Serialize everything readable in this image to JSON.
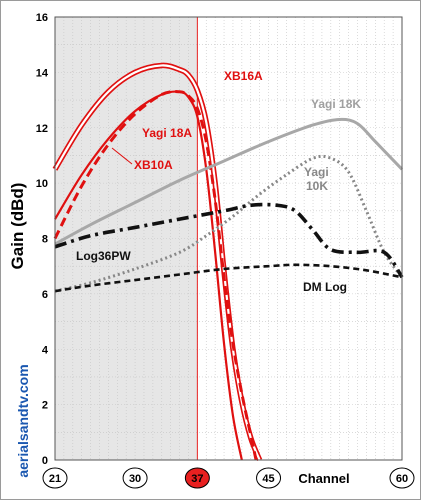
{
  "site_label": "aerialsandtv.com",
  "chart_data": {
    "type": "line",
    "title": "",
    "ylabel": "Gain (dBd)",
    "xlabel": "Channel",
    "xlim": [
      21,
      60
    ],
    "ylim": [
      0,
      16
    ],
    "yticks": [
      0,
      2,
      4,
      6,
      8,
      10,
      12,
      14,
      16
    ],
    "xticks": [
      21,
      30,
      37,
      45,
      60
    ],
    "highlighted_channel": 37,
    "highlight_color": "#e82020",
    "shaded_range": [
      21,
      37
    ],
    "grid": true,
    "series": [
      {
        "name": "XB16A",
        "color": "#e01010",
        "style": "double",
        "x": [
          21,
          24,
          27,
          30,
          33,
          35,
          36,
          37,
          38,
          39,
          40,
          41,
          42,
          43,
          44
        ],
        "y": [
          10.5,
          12.1,
          13.3,
          14.0,
          14.25,
          14.1,
          13.9,
          13.35,
          12.2,
          10.0,
          6.8,
          4.0,
          2.1,
          0.8,
          0
        ]
      },
      {
        "name": "Yagi 18A",
        "color": "#e01010",
        "style": "dashed",
        "x": [
          21,
          24,
          27,
          30,
          33,
          35,
          36,
          37,
          38,
          39,
          40,
          41,
          42,
          43,
          43.6
        ],
        "y": [
          8.0,
          9.9,
          11.4,
          12.5,
          13.2,
          13.3,
          13.15,
          12.7,
          11.5,
          9.4,
          6.6,
          4.2,
          2.4,
          0.9,
          0
        ]
      },
      {
        "name": "XB10A",
        "color": "#e01010",
        "style": "solid",
        "x": [
          21,
          24,
          27,
          30,
          33,
          35,
          36,
          37,
          38,
          39,
          40,
          41,
          42
        ],
        "y": [
          8.7,
          10.3,
          11.6,
          12.6,
          13.2,
          13.3,
          13.1,
          12.4,
          10.5,
          7.5,
          4.2,
          1.6,
          0
        ]
      },
      {
        "name": "Yagi 18K",
        "color": "#a8a8a8",
        "style": "solid",
        "x": [
          21,
          25,
          30,
          35,
          40,
          45,
          50,
          53,
          55,
          57,
          60
        ],
        "y": [
          7.8,
          8.5,
          9.3,
          10.1,
          10.8,
          11.5,
          12.1,
          12.3,
          12.15,
          11.5,
          10.5
        ]
      },
      {
        "name": "Yagi 10K",
        "color": "#888888",
        "style": "dotted",
        "x": [
          21,
          25,
          30,
          35,
          38,
          41,
          44,
          47,
          50,
          52,
          54,
          56,
          58,
          60
        ],
        "y": [
          6.1,
          6.4,
          6.9,
          7.5,
          8.1,
          8.8,
          9.6,
          10.3,
          10.9,
          10.9,
          10.4,
          9.0,
          7.5,
          6.6
        ]
      },
      {
        "name": "Log36PW",
        "color": "#111111",
        "style": "dashdot",
        "x": [
          21,
          25,
          30,
          35,
          40,
          43,
          46,
          48,
          50,
          52,
          55,
          58,
          60
        ],
        "y": [
          7.7,
          8.1,
          8.4,
          8.7,
          9.0,
          9.2,
          9.2,
          9.0,
          8.3,
          7.6,
          7.5,
          7.5,
          6.6
        ]
      },
      {
        "name": "DM Log",
        "color": "#111111",
        "style": "dashed",
        "x": [
          21,
          25,
          30,
          35,
          40,
          45,
          48,
          52,
          56,
          60
        ],
        "y": [
          6.1,
          6.3,
          6.5,
          6.7,
          6.9,
          7.0,
          7.05,
          7.0,
          6.85,
          6.6
        ]
      }
    ],
    "annotations": [
      "XB16A",
      "Yagi 18A",
      "XB10A",
      "Yagi 18K",
      "Yagi",
      "10K",
      "Log36PW",
      "DM Log"
    ]
  }
}
